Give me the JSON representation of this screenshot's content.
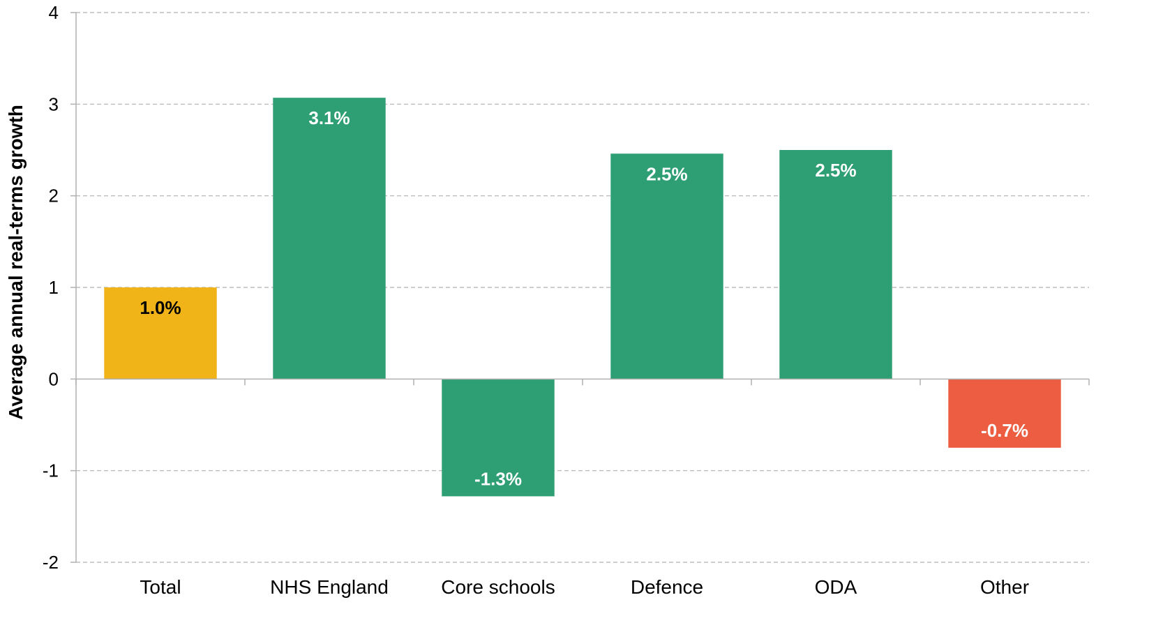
{
  "chart_data": {
    "type": "bar",
    "categories": [
      "Total",
      "NHS England",
      "Core schools",
      "Defence",
      "ODA",
      "Other"
    ],
    "values": [
      1.0,
      3.07,
      -1.28,
      2.46,
      2.5,
      -0.75
    ],
    "data_labels": [
      "1.0%",
      "3.1%",
      "-1.3%",
      "2.5%",
      "2.5%",
      "-0.7%"
    ],
    "bar_colors": [
      "#F0B418",
      "#2E9E74",
      "#2E9E74",
      "#2E9E74",
      "#2E9E74",
      "#EC5D41"
    ],
    "label_colors": [
      "#000000",
      "#ffffff",
      "#ffffff",
      "#ffffff",
      "#ffffff",
      "#ffffff"
    ],
    "ylabel": "Average annual real-terms growth",
    "xlabel": "",
    "ylim": [
      -2,
      4
    ],
    "yticks": [
      "-2",
      "-1",
      "0",
      "1",
      "2",
      "3",
      "4"
    ],
    "grid": true,
    "grid_color": "#b0b0b0",
    "axis_color": "#b0b0b0"
  }
}
